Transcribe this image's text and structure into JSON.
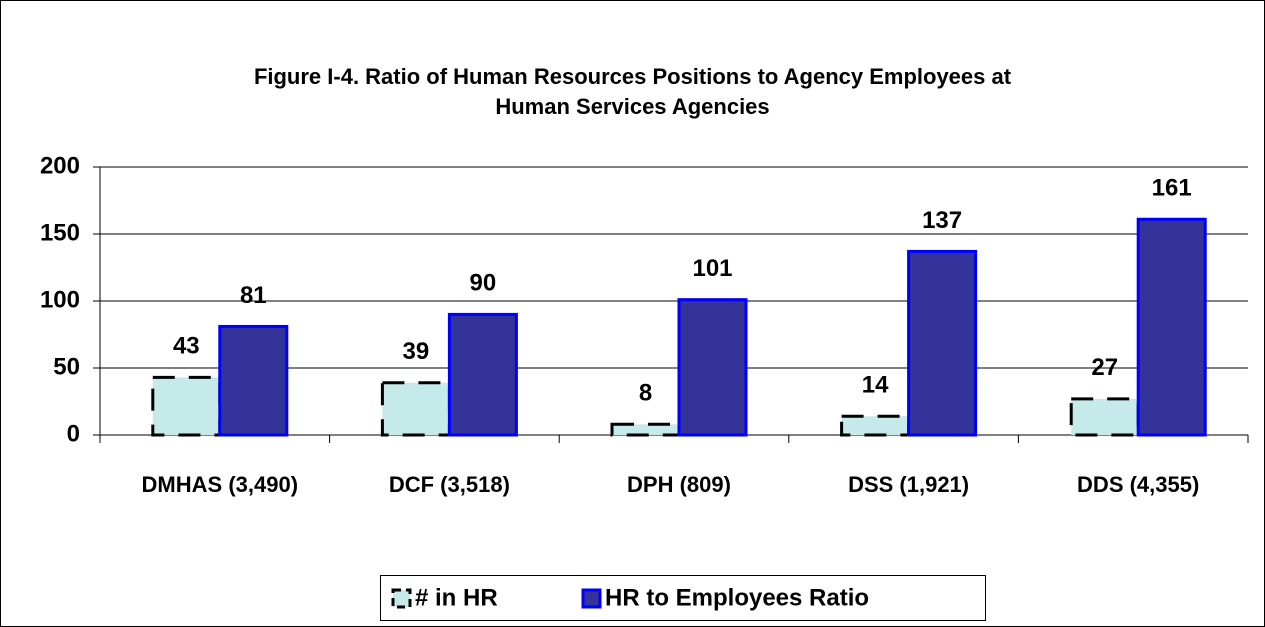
{
  "chart_data": {
    "type": "bar",
    "title": "Figure I-4. Ratio of Human Resources Positions to Agency Employees at Human Services Agencies",
    "categories": [
      "DMHAS (3,490)",
      "DCF (3,518)",
      "DPH (809)",
      "DSS (1,921)",
      "DDS (4,355)"
    ],
    "series": [
      {
        "name": "# in HR",
        "color": "#c6e9e9",
        "values": [
          43,
          39,
          8,
          14,
          27
        ]
      },
      {
        "name": "HR to Employees Ratio",
        "color": "#333399",
        "values": [
          81,
          90,
          101,
          137,
          161
        ]
      }
    ],
    "ylim": [
      0,
      200
    ],
    "yticks": [
      0,
      50,
      100,
      150,
      200
    ],
    "grid": true,
    "legend": "bottom"
  }
}
